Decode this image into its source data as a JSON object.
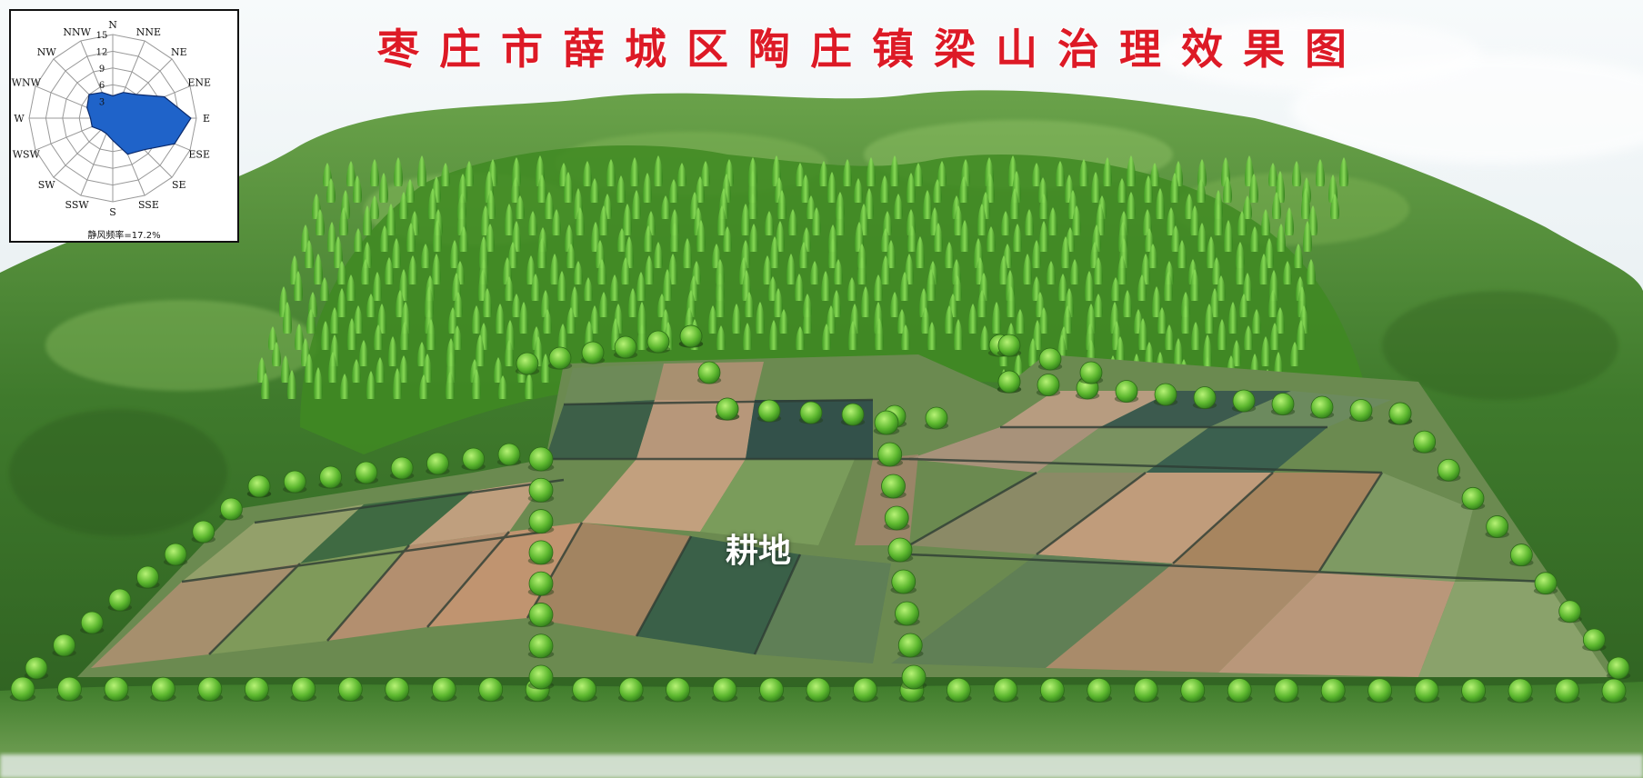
{
  "title": "枣庄市薛城区陶庄镇梁山治理效果图",
  "field_label": "耕地",
  "wind_rose": {
    "directions": [
      "N",
      "NNE",
      "NE",
      "ENE",
      "E",
      "ESE",
      "SE",
      "SSE",
      "S",
      "SSW",
      "SW",
      "WSW",
      "W",
      "WNW",
      "NW",
      "NNW"
    ],
    "ring_labels": [
      "3",
      "6",
      "9",
      "12",
      "15"
    ],
    "frequencies": [
      4,
      5,
      6,
      10,
      14,
      12,
      8,
      7,
      4,
      3,
      3,
      4,
      4,
      5,
      6,
      5
    ],
    "max": 15,
    "calm_text": "静风频率=17.2%",
    "fill_color": "#1f63c9"
  },
  "colors": {
    "title": "#dd1a26",
    "forest": "#3f7a2c",
    "tree": "#6fcf3c"
  }
}
